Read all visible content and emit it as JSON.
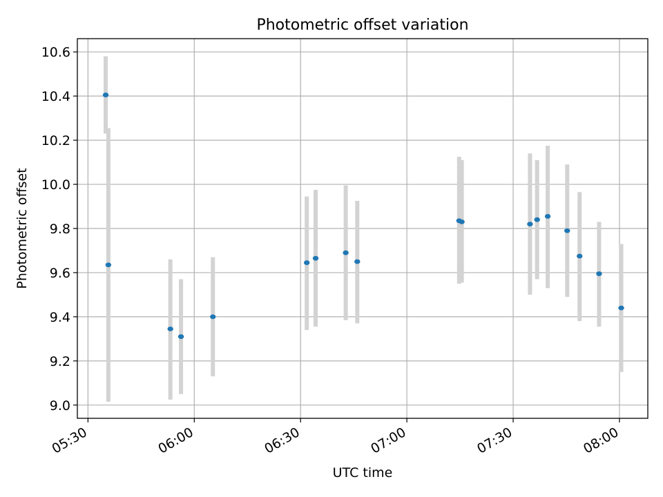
{
  "chart_data": {
    "type": "scatter",
    "title": "Photometric offset variation",
    "xlabel": "UTC time",
    "ylabel": "Photometric offset",
    "x_axis_kind": "time",
    "xlim": [
      "05:27",
      "08:08"
    ],
    "ylim": [
      8.94,
      10.66
    ],
    "x_ticks": [
      "05:30",
      "06:00",
      "06:30",
      "07:00",
      "07:30",
      "08:00"
    ],
    "y_ticks": [
      9.0,
      9.2,
      9.4,
      9.6,
      9.8,
      10.0,
      10.2,
      10.4,
      10.6
    ],
    "y_tick_labels": [
      "9.0",
      "9.2",
      "9.4",
      "9.6",
      "9.8",
      "10.0",
      "10.2",
      "10.4",
      "10.6"
    ],
    "grid": true,
    "marker_color": "#1f77b4",
    "errorbar_color": "#d3d3d3",
    "points": [
      {
        "time": "05:35:00",
        "y": 10.405,
        "ylow": 10.23,
        "yhigh": 10.58
      },
      {
        "time": "05:35:45",
        "y": 9.635,
        "ylow": 9.015,
        "yhigh": 10.255
      },
      {
        "time": "05:53:15",
        "y": 9.345,
        "ylow": 9.025,
        "yhigh": 9.66
      },
      {
        "time": "05:56:15",
        "y": 9.31,
        "ylow": 9.05,
        "yhigh": 9.57
      },
      {
        "time": "06:05:15",
        "y": 9.4,
        "ylow": 9.13,
        "yhigh": 9.67
      },
      {
        "time": "06:31:45",
        "y": 9.645,
        "ylow": 9.34,
        "yhigh": 9.945
      },
      {
        "time": "06:34:15",
        "y": 9.665,
        "ylow": 9.355,
        "yhigh": 9.975
      },
      {
        "time": "06:42:45",
        "y": 9.69,
        "ylow": 9.385,
        "yhigh": 9.995
      },
      {
        "time": "06:46:00",
        "y": 9.65,
        "ylow": 9.37,
        "yhigh": 9.925
      },
      {
        "time": "07:14:45",
        "y": 9.835,
        "ylow": 9.55,
        "yhigh": 10.125
      },
      {
        "time": "07:15:30",
        "y": 9.83,
        "ylow": 9.555,
        "yhigh": 10.11
      },
      {
        "time": "07:34:45",
        "y": 9.82,
        "ylow": 9.5,
        "yhigh": 10.14
      },
      {
        "time": "07:36:45",
        "y": 9.84,
        "ylow": 9.57,
        "yhigh": 10.11
      },
      {
        "time": "07:39:45",
        "y": 9.855,
        "ylow": 9.53,
        "yhigh": 10.175
      },
      {
        "time": "07:45:15",
        "y": 9.79,
        "ylow": 9.49,
        "yhigh": 10.09
      },
      {
        "time": "07:48:45",
        "y": 9.675,
        "ylow": 9.38,
        "yhigh": 9.965
      },
      {
        "time": "07:54:15",
        "y": 9.595,
        "ylow": 9.355,
        "yhigh": 9.83
      },
      {
        "time": "08:00:30",
        "y": 9.44,
        "ylow": 9.15,
        "yhigh": 9.73
      }
    ]
  }
}
